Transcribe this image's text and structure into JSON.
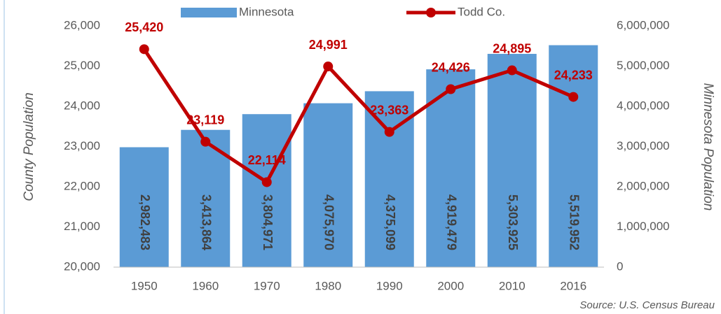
{
  "chart_data": {
    "type": "combo",
    "categories": [
      "1950",
      "1960",
      "1970",
      "1980",
      "1990",
      "2000",
      "2010",
      "2016"
    ],
    "series": [
      {
        "name": "Minnesota",
        "type": "bar",
        "axis": "y2",
        "color": "#5b9bd5",
        "values": [
          2982483,
          3413864,
          3804971,
          4075970,
          4375099,
          4919479,
          5303925,
          5519952
        ],
        "value_labels": [
          "2,982,483",
          "3,413,864",
          "3,804,971",
          "4,075,970",
          "4,375,099",
          "4,919,479",
          "5,303,925",
          "5,519,952"
        ]
      },
      {
        "name": "Todd Co.",
        "type": "line",
        "axis": "y",
        "color": "#c00000",
        "values": [
          25420,
          23119,
          22114,
          24991,
          23363,
          24426,
          24895,
          24233
        ],
        "value_labels": [
          "25,420",
          "23,119",
          "22,114",
          "24,991",
          "23,363",
          "24,426",
          "24,895",
          "24,233"
        ]
      }
    ],
    "ylabel": "County Population",
    "y2label": "Minnesota Population",
    "ylim": [
      20000,
      26000
    ],
    "yticks": [
      {
        "value": 20000,
        "label": "20,000"
      },
      {
        "value": 21000,
        "label": "21,000"
      },
      {
        "value": 22000,
        "label": "22,000"
      },
      {
        "value": 23000,
        "label": "23,000"
      },
      {
        "value": 24000,
        "label": "24,000"
      },
      {
        "value": 25000,
        "label": "25,000"
      },
      {
        "value": 26000,
        "label": "26,000"
      }
    ],
    "y2lim": [
      0,
      6000000
    ],
    "y2ticks": [
      0,
      {
        "value": 1000000,
        "label": "1,000,000"
      },
      {
        "value": 2000000,
        "label": "2,000,000"
      },
      {
        "value": 3000000,
        "label": "3,000,000"
      },
      {
        "value": 4000000,
        "label": "4,000,000"
      },
      {
        "value": 5000000,
        "label": "5,000,000"
      },
      {
        "value": 6000000,
        "label": "6,000,000"
      }
    ],
    "grid": false,
    "legend": "top",
    "annotation": "Source: U.S. Census Bureau"
  }
}
